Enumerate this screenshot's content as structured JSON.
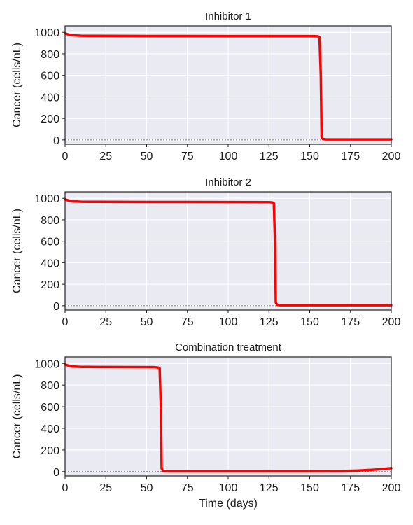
{
  "chart_data": [
    {
      "type": "line",
      "title": "Inhibitor 1",
      "xlabel": "",
      "ylabel": "Cancer (cells/nL)",
      "xlim": [
        0,
        200
      ],
      "ylim": [
        -40,
        1060
      ],
      "xticks": [
        0,
        25,
        50,
        75,
        100,
        125,
        150,
        175,
        200
      ],
      "yticks": [
        0,
        200,
        400,
        600,
        800,
        1000
      ],
      "grid": true,
      "threshold": 0,
      "series": [
        {
          "color": "#ff0000",
          "x": [
            0,
            2,
            5,
            10,
            20,
            50,
            100,
            150,
            155,
            156,
            156.8,
            157.3,
            158,
            160,
            200
          ],
          "y": [
            990,
            980,
            972,
            968,
            967,
            966,
            965,
            965,
            963,
            955,
            600,
            30,
            8,
            5,
            5
          ]
        }
      ]
    },
    {
      "type": "line",
      "title": "Inhibitor 2",
      "xlabel": "",
      "ylabel": "Cancer (cells/nL)",
      "xlim": [
        0,
        200
      ],
      "ylim": [
        -40,
        1060
      ],
      "xticks": [
        0,
        25,
        50,
        75,
        100,
        125,
        150,
        175,
        200
      ],
      "yticks": [
        0,
        200,
        400,
        600,
        800,
        1000
      ],
      "grid": true,
      "threshold": 0,
      "series": [
        {
          "color": "#ff0000",
          "x": [
            0,
            2,
            5,
            10,
            20,
            50,
            100,
            125,
            127,
            128,
            128.7,
            129.2,
            130,
            132,
            200
          ],
          "y": [
            990,
            980,
            972,
            968,
            967,
            966,
            965,
            964,
            962,
            955,
            600,
            30,
            8,
            5,
            5
          ]
        }
      ]
    },
    {
      "type": "line",
      "title": "Combination treatment",
      "xlabel": "Time (days)",
      "ylabel": "Cancer (cells/nL)",
      "xlim": [
        0,
        200
      ],
      "ylim": [
        -40,
        1060
      ],
      "xticks": [
        0,
        25,
        50,
        75,
        100,
        125,
        150,
        175,
        200
      ],
      "yticks": [
        0,
        200,
        400,
        600,
        800,
        1000
      ],
      "grid": true,
      "threshold": 0,
      "series": [
        {
          "color": "#ff0000",
          "x": [
            0,
            2,
            5,
            10,
            20,
            40,
            55,
            57,
            58,
            58.7,
            59.2,
            60,
            62,
            100,
            150,
            170,
            180,
            190,
            200
          ],
          "y": [
            990,
            980,
            972,
            968,
            967,
            966,
            965,
            962,
            955,
            600,
            30,
            8,
            5,
            5,
            5,
            6,
            10,
            18,
            32
          ]
        }
      ]
    }
  ]
}
